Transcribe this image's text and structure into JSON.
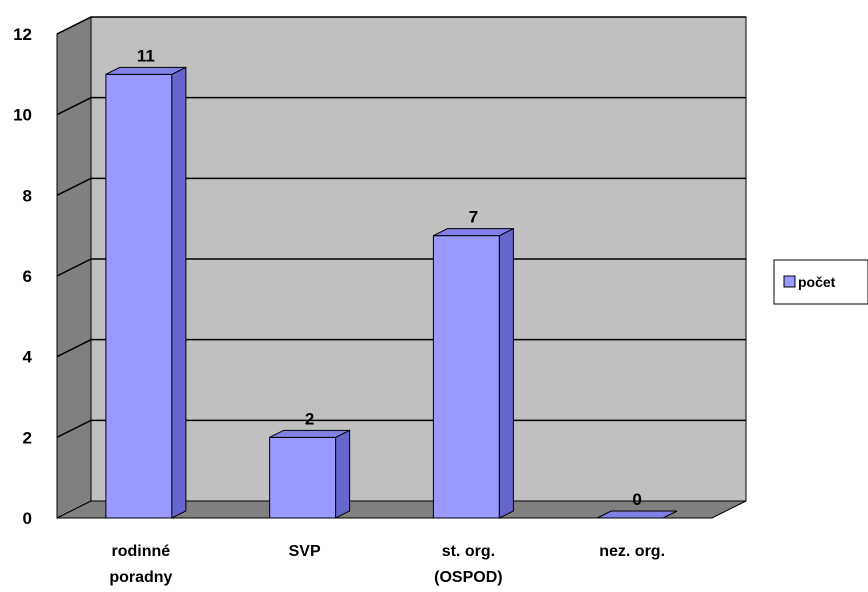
{
  "chart_data": {
    "type": "bar",
    "categories": [
      [
        "rodinné",
        "poradny"
      ],
      [
        "SVP"
      ],
      [
        "st. org.",
        "(OSPOD)"
      ],
      [
        "nez. org."
      ]
    ],
    "series": [
      {
        "name": "počet",
        "values": [
          11,
          2,
          7,
          0
        ]
      }
    ],
    "ylim": [
      0,
      12
    ],
    "yticks": [
      0,
      2,
      4,
      6,
      8,
      10,
      12
    ],
    "data_labels": [
      "11",
      "2",
      "7",
      "0"
    ],
    "grid": true,
    "legend": "right",
    "colors": {
      "bar_front": "#9999ff",
      "bar_side": "#6666cc",
      "bar_top": "#8080e6",
      "wall": "#c0c0c0",
      "left_wall": "#808080",
      "floor": "#808080",
      "gridline": "#000000"
    }
  }
}
